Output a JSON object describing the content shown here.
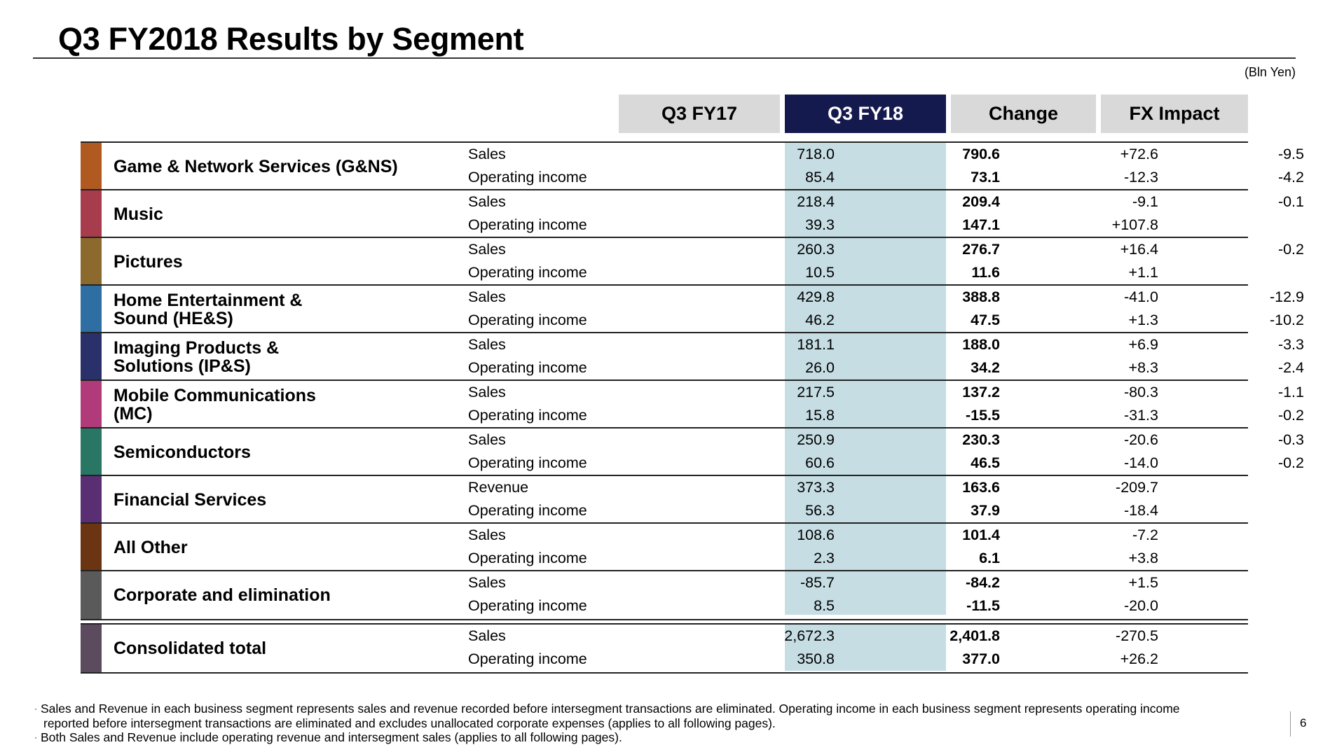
{
  "title": "Q3 FY2018 Results by Segment",
  "unit": "(Bln Yen)",
  "columns": {
    "fy17": "Q3 FY17",
    "fy18": "Q3 FY18",
    "change": "Change",
    "fx": "FX Impact"
  },
  "colors": {
    "header_bg": "#d9d9d9",
    "highlight_header_bg": "#141a4e",
    "highlight_column_bg": "#c5dde3"
  },
  "segments": [
    {
      "name": "Game & Network Services (G&NS)",
      "color": "#b05a22",
      "rows": [
        {
          "label": "Sales",
          "fy17": "718.0",
          "fy18": "790.6",
          "change": "+72.6",
          "fx": "-9.5"
        },
        {
          "label": "Operating income",
          "fy17": "85.4",
          "fy18": "73.1",
          "change": "-12.3",
          "fx": "-4.2"
        }
      ]
    },
    {
      "name": "Music",
      "color": "#a63c4c",
      "rows": [
        {
          "label": "Sales",
          "fy17": "218.4",
          "fy18": "209.4",
          "change": "-9.1",
          "fx": "-0.1"
        },
        {
          "label": "Operating income",
          "fy17": "39.3",
          "fy18": "147.1",
          "change": "+107.8",
          "fx": ""
        }
      ]
    },
    {
      "name": "Pictures",
      "color": "#8c6a2e",
      "rows": [
        {
          "label": "Sales",
          "fy17": "260.3",
          "fy18": "276.7",
          "change": "+16.4",
          "fx": "-0.2"
        },
        {
          "label": "Operating income",
          "fy17": "10.5",
          "fy18": "11.6",
          "change": "+1.1",
          "fx": ""
        }
      ]
    },
    {
      "name": "Home Entertainment &\nSound (HE&S)",
      "color": "#2e6ea3",
      "rows": [
        {
          "label": "Sales",
          "fy17": "429.8",
          "fy18": "388.8",
          "change": "-41.0",
          "fx": "-12.9"
        },
        {
          "label": "Operating income",
          "fy17": "46.2",
          "fy18": "47.5",
          "change": "+1.3",
          "fx": "-10.2"
        }
      ]
    },
    {
      "name": "Imaging Products &\nSolutions (IP&S)",
      "color": "#29306a",
      "rows": [
        {
          "label": "Sales",
          "fy17": "181.1",
          "fy18": "188.0",
          "change": "+6.9",
          "fx": "-3.3"
        },
        {
          "label": "Operating income",
          "fy17": "26.0",
          "fy18": "34.2",
          "change": "+8.3",
          "fx": "-2.4"
        }
      ]
    },
    {
      "name": "Mobile Communications\n(MC)",
      "color": "#b13a7a",
      "rows": [
        {
          "label": "Sales",
          "fy17": "217.5",
          "fy18": "137.2",
          "change": "-80.3",
          "fx": "-1.1"
        },
        {
          "label": "Operating income",
          "fy17": "15.8",
          "fy18": "-15.5",
          "change": "-31.3",
          "fx": "-0.2"
        }
      ]
    },
    {
      "name": "Semiconductors",
      "color": "#2a7665",
      "rows": [
        {
          "label": "Sales",
          "fy17": "250.9",
          "fy18": "230.3",
          "change": "-20.6",
          "fx": "-0.3"
        },
        {
          "label": "Operating income",
          "fy17": "60.6",
          "fy18": "46.5",
          "change": "-14.0",
          "fx": "-0.2"
        }
      ]
    },
    {
      "name": "Financial Services",
      "color": "#5a2e72",
      "rows": [
        {
          "label": "Revenue",
          "fy17": "373.3",
          "fy18": "163.6",
          "change": "-209.7",
          "fx": ""
        },
        {
          "label": "Operating income",
          "fy17": "56.3",
          "fy18": "37.9",
          "change": "-18.4",
          "fx": ""
        }
      ]
    },
    {
      "name": "All Other",
      "color": "#6b3412",
      "rows": [
        {
          "label": "Sales",
          "fy17": "108.6",
          "fy18": "101.4",
          "change": "-7.2",
          "fx": ""
        },
        {
          "label": "Operating income",
          "fy17": "2.3",
          "fy18": "6.1",
          "change": "+3.8",
          "fx": ""
        }
      ]
    },
    {
      "name": "Corporate and elimination",
      "color": "#5a5a5a",
      "rows": [
        {
          "label": "Sales",
          "fy17": "-85.7",
          "fy18": "-84.2",
          "change": "+1.5",
          "fx": ""
        },
        {
          "label": "Operating income",
          "fy17": "8.5",
          "fy18": "-11.5",
          "change": "-20.0",
          "fx": ""
        }
      ]
    }
  ],
  "total": {
    "name": "Consolidated total",
    "color": "#5c4a5e",
    "rows": [
      {
        "label": "Sales",
        "fy17": "2,672.3",
        "fy18": "2,401.8",
        "change": "-270.5",
        "fx": ""
      },
      {
        "label": "Operating income",
        "fy17": "350.8",
        "fy18": "377.0",
        "change": "+26.2",
        "fx": ""
      }
    ]
  },
  "footnotes": {
    "bullet": "·",
    "note1_line1": "Sales and Revenue in each business segment represents sales and revenue recorded before intersegment transactions are eliminated. Operating income in each business segment represents operating income",
    "note1_line2": "reported before intersegment transactions are eliminated and excludes unallocated corporate expenses (applies to all following pages).",
    "note2": "Both Sales and Revenue include operating revenue and intersegment sales (applies to all following pages)."
  },
  "page_number": "6"
}
